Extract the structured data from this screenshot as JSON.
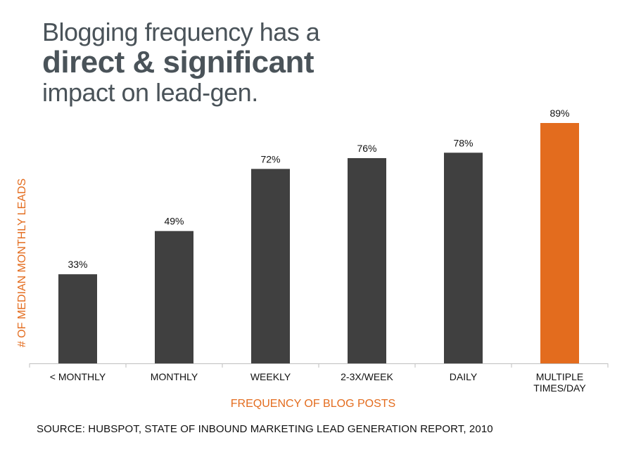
{
  "title": {
    "line1": "Blogging frequency has a",
    "line2": "direct & significant",
    "line3": "impact on lead-gen."
  },
  "source": "SOURCE: HUBSPOT, STATE OF INBOUND MARKETING LEAD GENERATION REPORT, 2010",
  "colors": {
    "bar": "#404040",
    "highlight": "#e36c1e",
    "title": "#4a5359",
    "axis": "#bfbfbf"
  },
  "chart_data": {
    "type": "bar",
    "categories": [
      [
        "< MONTHLY"
      ],
      [
        "MONTHLY"
      ],
      [
        "WEEKLY"
      ],
      [
        "2-3X/WEEK"
      ],
      [
        "DAILY"
      ],
      [
        "MULTIPLE",
        "TIMES/DAY"
      ]
    ],
    "values": [
      33,
      49,
      72,
      76,
      78,
      89
    ],
    "value_labels": [
      "33%",
      "49%",
      "72%",
      "76%",
      "78%",
      "89%"
    ],
    "highlight_index": 5,
    "xlabel": "FREQUENCY OF BLOG POSTS",
    "ylabel": "# OF MEDIAN MONTHLY LEADS",
    "ylim": [
      0,
      89
    ],
    "grid": false
  }
}
